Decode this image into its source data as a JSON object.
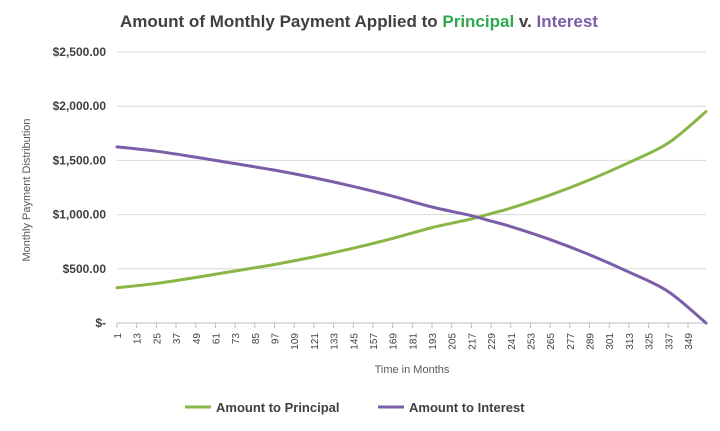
{
  "chart_data": {
    "type": "line",
    "title": {
      "prefix": "Amount of Monthly Payment Applied to ",
      "part_principal": "Principal",
      "connector": " v. ",
      "part_interest": "Interest"
    },
    "xlabel": "Time in Months",
    "ylabel": "Monthly Payment Distribution",
    "ylim": [
      0,
      2500
    ],
    "xlim": [
      1,
      360
    ],
    "y_ticks": [
      0,
      500,
      1000,
      1500,
      2000,
      2500
    ],
    "y_tick_labels": [
      "$-",
      "$500.00",
      "$1,000.00",
      "$1,500.00",
      "$2,000.00",
      "$2,500.00"
    ],
    "x_tick_labels": [
      "1",
      "13",
      "25",
      "37",
      "49",
      "61",
      "73",
      "85",
      "97",
      "109",
      "121",
      "133",
      "145",
      "157",
      "169",
      "181",
      "193",
      "205",
      "217",
      "229",
      "241",
      "253",
      "265",
      "277",
      "289",
      "301",
      "313",
      "325",
      "337",
      "349"
    ],
    "grid": true,
    "legend_position": "bottom",
    "x": [
      1,
      25,
      49,
      73,
      97,
      121,
      145,
      169,
      193,
      217,
      229,
      241,
      265,
      289,
      313,
      337,
      360
    ],
    "series": [
      {
        "name": "Amount to Principal",
        "color": "#8ab547",
        "values": [
          325,
          365,
          420,
          480,
          540,
          610,
          690,
          780,
          880,
          960,
          1010,
          1060,
          1180,
          1320,
          1480,
          1660,
          1950
        ]
      },
      {
        "name": "Amount to Interest",
        "color": "#7b5ea7",
        "values": [
          1625,
          1585,
          1530,
          1470,
          1410,
          1340,
          1260,
          1170,
          1070,
          990,
          940,
          890,
          770,
          630,
          470,
          290,
          0
        ]
      }
    ]
  }
}
